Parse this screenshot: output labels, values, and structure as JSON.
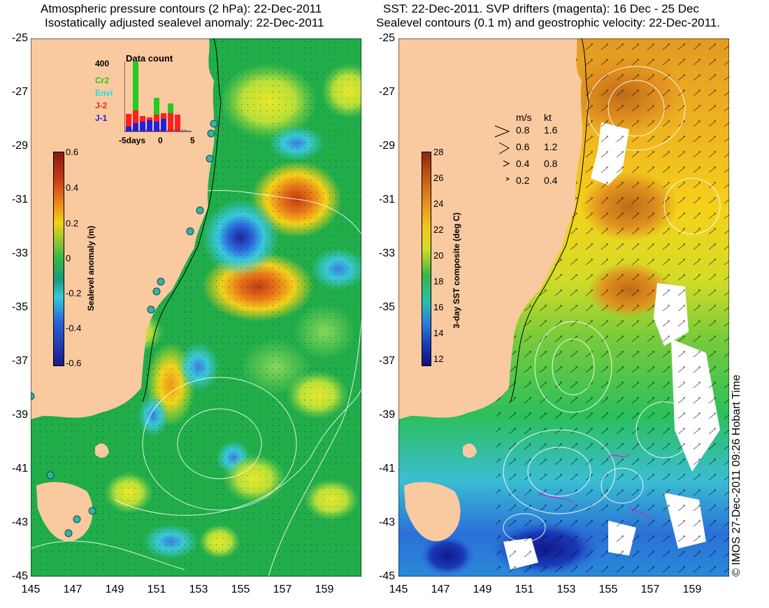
{
  "left_panel": {
    "title_line1": "Atmospheric pressure contours (2 hPa): 22-Dec-2011",
    "title_line2": "Isostatically adjusted sealevel anomaly: 22-Dec-2011",
    "colorbar": {
      "label": "Sealevel anomaly (m)",
      "ticks": [
        "0.6",
        "0.4",
        "0.2",
        "0",
        "-0.2",
        "-0.4",
        "-0.6"
      ]
    },
    "data_count": {
      "title": "Data count",
      "ymax_label": "400",
      "legend": [
        {
          "name": "Cr2",
          "color": "#22cc22"
        },
        {
          "name": "Envi",
          "color": "#22dddd"
        },
        {
          "name": "J-2",
          "color": "#ff2020"
        },
        {
          "name": "J-1",
          "color": "#2020dd"
        }
      ],
      "x_labels": [
        "-5days",
        "0",
        "5"
      ]
    }
  },
  "right_panel": {
    "title_line1": "SST: 22-Dec-2011. SVP drifters (magenta): 16 Dec - 25 Dec",
    "title_line2": "Sealevel contours (0.1 m) and geostrophic velocity: 22-Dec-2011.",
    "colorbar": {
      "label": "3-day SST composite (deg C)",
      "ticks": [
        "28",
        "26",
        "24",
        "22",
        "20",
        "18",
        "16",
        "14",
        "12"
      ]
    },
    "velocity_key": {
      "header_ms": "m/s",
      "header_kt": "kt",
      "rows": [
        {
          "ms": "0.8",
          "kt": "1.6"
        },
        {
          "ms": "0.6",
          "kt": "1.2"
        },
        {
          "ms": "0.4",
          "kt": "0.8"
        },
        {
          "ms": "0.2",
          "kt": "0.4"
        }
      ]
    }
  },
  "axes": {
    "y_labels": [
      "-25",
      "-27",
      "-29",
      "-31",
      "-33",
      "-35",
      "-37",
      "-39",
      "-41",
      "-43",
      "-45"
    ],
    "x_labels": [
      "145",
      "147",
      "149",
      "151",
      "153",
      "155",
      "157",
      "159"
    ]
  },
  "copyright": "© IMOS 27-Dec-2011 09:26 Hobart Time",
  "colors": {
    "land": "#f9c9a0",
    "ocean_base_left": "#22b24c",
    "ocean_base_right": "#f5c21a"
  }
}
